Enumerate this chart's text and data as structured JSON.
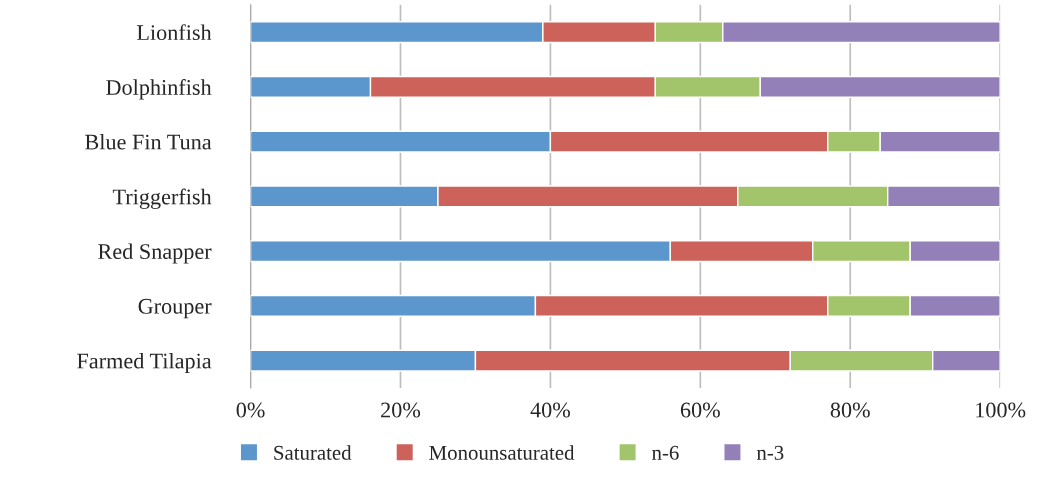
{
  "chart_data": {
    "type": "bar",
    "orientation": "horizontal",
    "stacked": true,
    "categories": [
      "Lionfish",
      "Dolphinfish",
      "Blue Fin Tuna",
      "Triggerfish",
      "Red Snapper",
      "Grouper",
      "Farmed Tilapia"
    ],
    "series": [
      {
        "name": "Saturated",
        "color": "#5b96cd",
        "values": [
          39,
          16,
          40,
          25,
          56,
          38,
          30
        ]
      },
      {
        "name": "Monounsaturated",
        "color": "#cd625b",
        "values": [
          15,
          38,
          37,
          40,
          19,
          39,
          42
        ]
      },
      {
        "name": "n-6",
        "color": "#a2c46a",
        "values": [
          9,
          14,
          7,
          20,
          13,
          11,
          19
        ]
      },
      {
        "name": "n-3",
        "color": "#9480b8",
        "values": [
          37,
          32,
          16,
          15,
          12,
          12,
          9
        ]
      }
    ],
    "xlim": [
      0,
      100
    ],
    "xticks": [
      {
        "value": 0,
        "label": "0%"
      },
      {
        "value": 20,
        "label": "20%"
      },
      {
        "value": 40,
        "label": "40%"
      },
      {
        "value": 60,
        "label": "60%"
      },
      {
        "value": 80,
        "label": "80%"
      },
      {
        "value": 100,
        "label": "100%"
      }
    ],
    "grid": "x",
    "legend": "bottom"
  }
}
